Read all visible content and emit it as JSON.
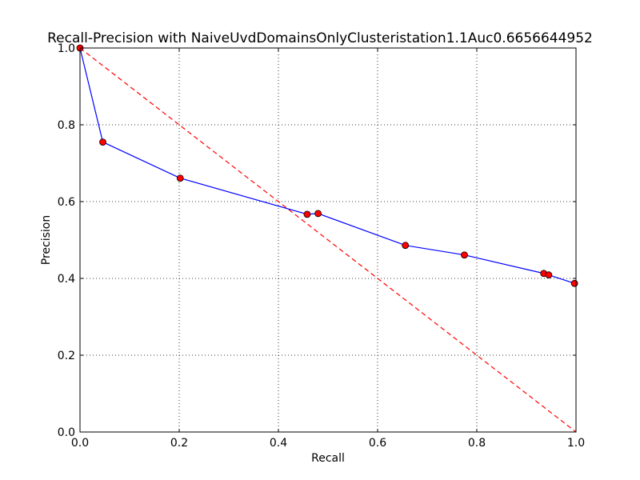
{
  "chart_data": {
    "type": "line",
    "title": "Recall-Precision with NaiveUvdDomainsOnlyClusteristation1.1Auc0.6656644952",
    "xlabel": "Recall",
    "ylabel": "Precision",
    "xlim": [
      0.0,
      1.0
    ],
    "ylim": [
      0.0,
      1.0
    ],
    "x_ticks": [
      "0.0",
      "0.2",
      "0.4",
      "0.6",
      "0.8",
      "1.0"
    ],
    "y_ticks": [
      "0.0",
      "0.2",
      "0.4",
      "0.6",
      "0.8",
      "1.0"
    ],
    "grid": true,
    "legend": "none",
    "series": [
      {
        "color": "#0000ff",
        "line_style": "solid",
        "marker": "circle",
        "marker_color": "#ff0000",
        "x": [
          0.0,
          0.046,
          0.202,
          0.458,
          0.48,
          0.656,
          0.775,
          0.935,
          0.945,
          0.997
        ],
        "y": [
          1.0,
          0.755,
          0.661,
          0.567,
          0.569,
          0.486,
          0.461,
          0.413,
          0.409,
          0.387
        ]
      },
      {
        "color": "#ff0000",
        "line_style": "dashed",
        "marker": "none",
        "x": [
          0.0,
          1.0
        ],
        "y": [
          1.0,
          0.0
        ]
      }
    ]
  }
}
